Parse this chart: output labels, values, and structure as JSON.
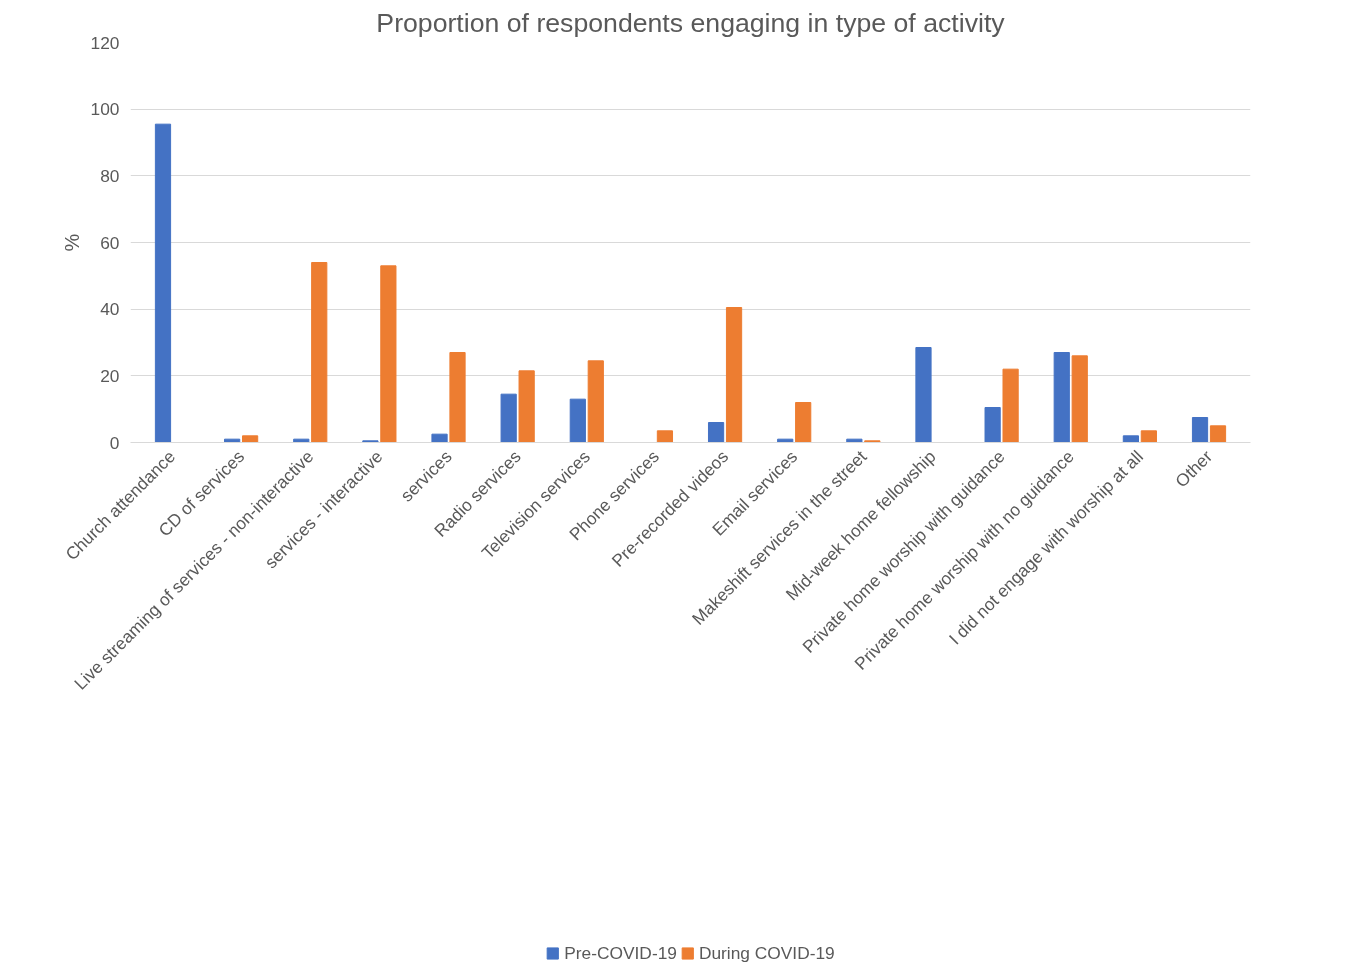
{
  "chart_data": {
    "type": "bar",
    "title": "Proportion of respondents engaging in type of activity",
    "ylabel": "%",
    "categories": [
      "Church attendance",
      "CD of services",
      "Live streaming of services - non-interactive",
      "services - interactive",
      "services",
      "Radio services",
      "Television services",
      "Phone services",
      "Pre-recorded videos",
      "Email services",
      "Makeshift services in the street",
      "Mid-week home fellowship",
      "Private home worship with guidance",
      "Private home worship with no guidance",
      "I did not engage with worship at all",
      "Other"
    ],
    "series": [
      {
        "name": "Pre-COVID-19",
        "color": "#4472c4",
        "values": [
          95.5,
          1,
          1,
          0.5,
          2.5,
          14.5,
          13,
          0,
          6,
          1,
          1,
          28.5,
          10.5,
          27,
          2,
          7.5
        ]
      },
      {
        "name": "During COVID-19",
        "color": "#ed7d31",
        "values": [
          0,
          2,
          54,
          53,
          27,
          21.5,
          24.5,
          3.5,
          40.5,
          12,
          0.5,
          0,
          22,
          26,
          3.5,
          5
        ]
      }
    ],
    "ylim": [
      0,
      120
    ],
    "yticks": [
      0,
      20,
      40,
      60,
      80,
      100,
      120
    ],
    "grid": "y",
    "legend": "bottom"
  }
}
